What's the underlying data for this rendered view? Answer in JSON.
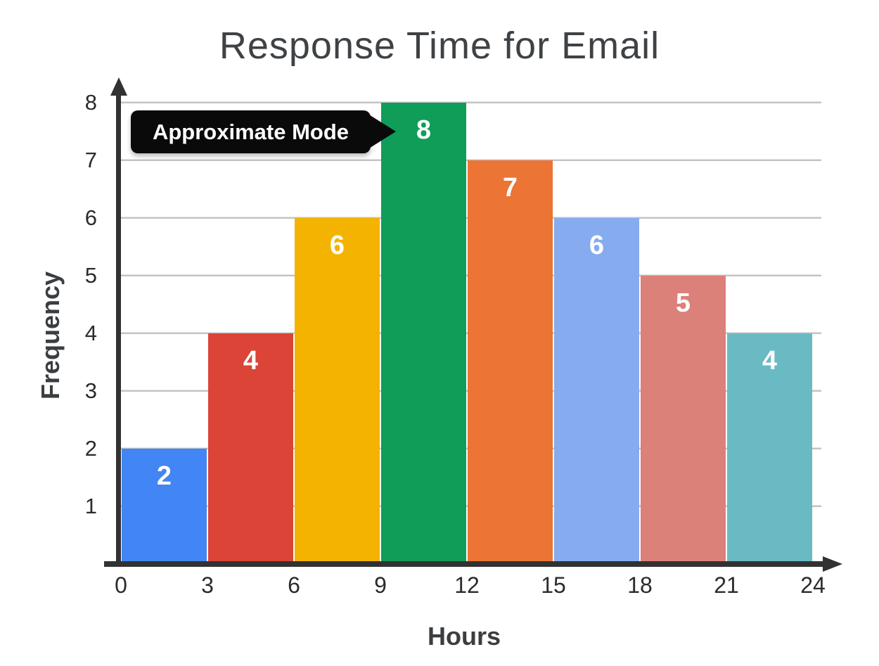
{
  "page": {
    "background": "#ffffff"
  },
  "chart_data": {
    "type": "bar",
    "chart_kind": "histogram",
    "title": "Response Time for Email",
    "xlabel": "Hours",
    "ylabel": "Frequency",
    "bin_edges": [
      0,
      3,
      6,
      9,
      12,
      15,
      18,
      21,
      24
    ],
    "x_tick_labels": [
      "0",
      "3",
      "6",
      "9",
      "12",
      "15",
      "18",
      "21",
      "24"
    ],
    "y_tick_labels": [
      "1",
      "2",
      "3",
      "4",
      "5",
      "6",
      "7",
      "8"
    ],
    "values": [
      2,
      4,
      6,
      8,
      7,
      6,
      5,
      4
    ],
    "bar_labels": [
      "2",
      "4",
      "6",
      "8",
      "7",
      "6",
      "5",
      "4"
    ],
    "bar_colors": [
      "#4285F4",
      "#DB4437",
      "#F3B300",
      "#0F9D58",
      "#EC7434",
      "#86ABEF",
      "#DC807A",
      "#6ABAC4"
    ],
    "ylim": [
      0,
      8
    ],
    "grid": "horizontal",
    "legend": "none",
    "annotation": {
      "text": "Approximate Mode",
      "points_to_bar_index": 3,
      "target_value": 8
    },
    "colors": {
      "axis": "#323232",
      "gridline": "#c3c3c3",
      "title_text": "#3f4245",
      "tick_text": "#2b2b2b",
      "bar_label_text": "#ffffff",
      "annotation_bg": "#0a0a0a",
      "annotation_text": "#ffffff"
    }
  }
}
